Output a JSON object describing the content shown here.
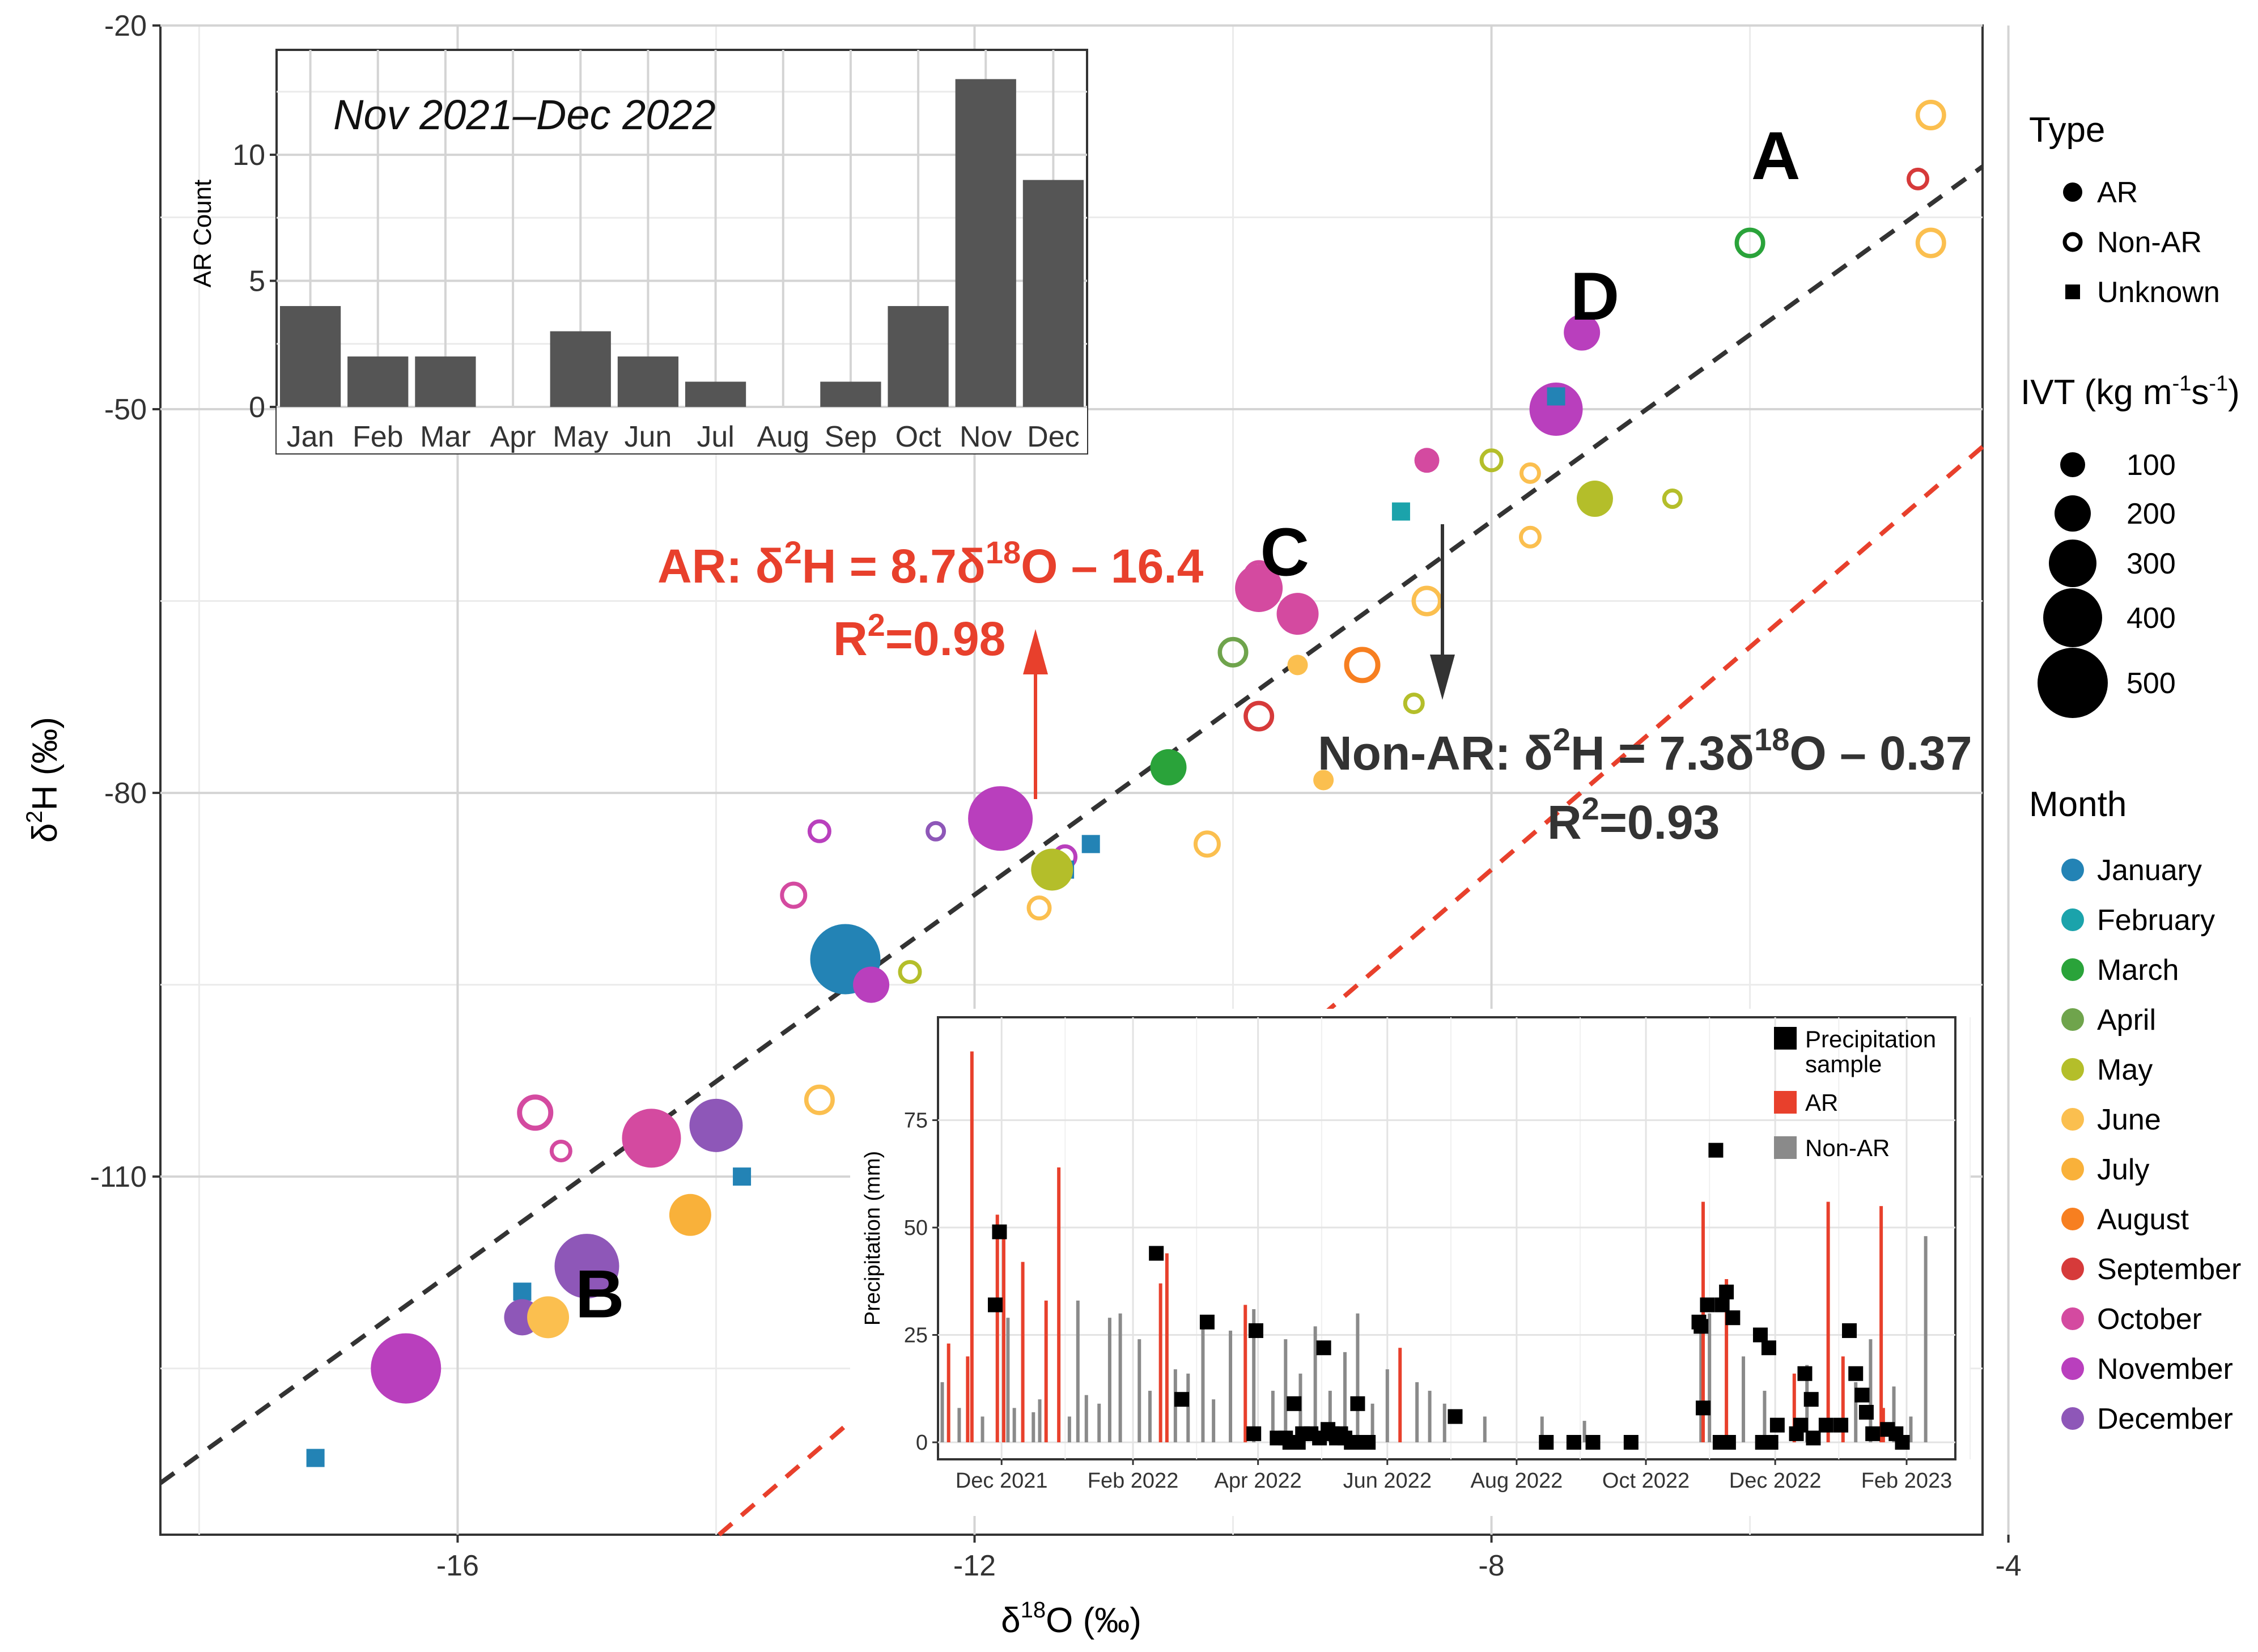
{
  "chart_data": {
    "type": "scatter",
    "xlabel_prefix": "δ",
    "xlabel_sup": "18",
    "xlabel_suffix": "O (‰)",
    "ylabel_prefix": "δ",
    "ylabel_sup": "2",
    "ylabel_suffix": "H (‰)",
    "xlim": [
      -18.3,
      -4.2
    ],
    "ylim": [
      -138,
      -20
    ],
    "xticks": [
      -16,
      -12,
      -8,
      -4
    ],
    "yticks": [
      -20,
      -50,
      -80,
      -110
    ],
    "fits": [
      {
        "name": "AR",
        "slope": 8.7,
        "intercept": -16.4,
        "color": "#e8402c",
        "eq_prefix": "AR: δ",
        "eq_sup": "2",
        "eq_mid": "H = 8.7δ",
        "eq_sup2": "18",
        "eq_suffix": "O – 16.4",
        "r2_prefix": "R",
        "r2_sup": "2",
        "r2_suffix": "=0.98"
      },
      {
        "name": "Non-AR",
        "slope": 7.3,
        "intercept": -0.37,
        "color": "#333333",
        "eq_prefix": "Non-AR: δ",
        "eq_sup": "2",
        "eq_mid": "H = 7.3δ",
        "eq_sup2": "18",
        "eq_suffix": "O – 0.37",
        "r2_prefix": "R",
        "r2_sup": "2",
        "r2_suffix": "=0.93"
      }
    ],
    "point_labels": [
      {
        "text": "A",
        "x": -5.8,
        "y": -32
      },
      {
        "text": "B",
        "x": -14.9,
        "y": -121
      },
      {
        "text": "C",
        "x": -9.6,
        "y": -63
      },
      {
        "text": "D",
        "x": -7.2,
        "y": -43
      }
    ],
    "points": [
      {
        "x": -6.0,
        "y": -37,
        "type": "Non-AR",
        "month": "March",
        "ivt": 150
      },
      {
        "x": -4.6,
        "y": -27,
        "type": "Non-AR",
        "month": "June",
        "ivt": 150
      },
      {
        "x": -4.6,
        "y": -37,
        "type": "Non-AR",
        "month": "June",
        "ivt": 150
      },
      {
        "x": -4.7,
        "y": -32,
        "type": "Non-AR",
        "month": "September",
        "ivt": 80
      },
      {
        "x": -7.3,
        "y": -44,
        "type": "AR",
        "month": "November",
        "ivt": 200
      },
      {
        "x": -7.5,
        "y": -50,
        "type": "AR",
        "month": "November",
        "ivt": 350
      },
      {
        "x": -7.5,
        "y": -49,
        "type": "Unknown",
        "month": "January"
      },
      {
        "x": -8.5,
        "y": -54,
        "type": "AR",
        "month": "October",
        "ivt": 100
      },
      {
        "x": -8.0,
        "y": -54,
        "type": "Non-AR",
        "month": "May",
        "ivt": 90
      },
      {
        "x": -7.7,
        "y": -55,
        "type": "Non-AR",
        "month": "June",
        "ivt": 70
      },
      {
        "x": -7.2,
        "y": -57,
        "type": "AR",
        "month": "May",
        "ivt": 200
      },
      {
        "x": -6.6,
        "y": -57,
        "type": "Non-AR",
        "month": "May",
        "ivt": 60
      },
      {
        "x": -8.7,
        "y": -58,
        "type": "Unknown",
        "month": "February"
      },
      {
        "x": -7.7,
        "y": -60,
        "type": "Non-AR",
        "month": "June",
        "ivt": 80
      },
      {
        "x": -9.8,
        "y": -63,
        "type": "Non-AR",
        "month": "October",
        "ivt": 150
      },
      {
        "x": -9.8,
        "y": -64,
        "type": "AR",
        "month": "October",
        "ivt": 300
      },
      {
        "x": -9.5,
        "y": -66,
        "type": "AR",
        "month": "October",
        "ivt": 250
      },
      {
        "x": -8.5,
        "y": -65,
        "type": "Non-AR",
        "month": "June",
        "ivt": 150
      },
      {
        "x": -10.0,
        "y": -69,
        "type": "Non-AR",
        "month": "April",
        "ivt": 150
      },
      {
        "x": -9.5,
        "y": -70,
        "type": "AR",
        "month": "June",
        "ivt": 60
      },
      {
        "x": -9.0,
        "y": -70,
        "type": "Non-AR",
        "month": "August",
        "ivt": 200
      },
      {
        "x": -8.6,
        "y": -73,
        "type": "Non-AR",
        "month": "May",
        "ivt": 70
      },
      {
        "x": -9.8,
        "y": -74,
        "type": "Non-AR",
        "month": "September",
        "ivt": 150
      },
      {
        "x": -10.5,
        "y": -78,
        "type": "AR",
        "month": "March",
        "ivt": 200
      },
      {
        "x": -9.3,
        "y": -79,
        "type": "AR",
        "month": "June",
        "ivt": 60
      },
      {
        "x": -11.8,
        "y": -82,
        "type": "AR",
        "month": "November",
        "ivt": 450
      },
      {
        "x": -13.2,
        "y": -83,
        "type": "Non-AR",
        "month": "November",
        "ivt": 90
      },
      {
        "x": -12.3,
        "y": -83,
        "type": "Non-AR",
        "month": "December",
        "ivt": 60
      },
      {
        "x": -10.2,
        "y": -84,
        "type": "Non-AR",
        "month": "June",
        "ivt": 120
      },
      {
        "x": -11.3,
        "y": -85,
        "type": "Non-AR",
        "month": "November",
        "ivt": 100
      },
      {
        "x": -11.1,
        "y": -84,
        "type": "Unknown",
        "month": "January"
      },
      {
        "x": -11.3,
        "y": -86,
        "type": "Unknown",
        "month": "January"
      },
      {
        "x": -11.4,
        "y": -86,
        "type": "AR",
        "month": "May",
        "ivt": 250
      },
      {
        "x": -13.4,
        "y": -88,
        "type": "Non-AR",
        "month": "October",
        "ivt": 120
      },
      {
        "x": -11.5,
        "y": -89,
        "type": "Non-AR",
        "month": "June",
        "ivt": 100
      },
      {
        "x": -13.0,
        "y": -93,
        "type": "AR",
        "month": "January",
        "ivt": 500
      },
      {
        "x": -12.8,
        "y": -95,
        "type": "AR",
        "month": "November",
        "ivt": 200
      },
      {
        "x": -12.5,
        "y": -94,
        "type": "Non-AR",
        "month": "May",
        "ivt": 90
      },
      {
        "x": -13.2,
        "y": -104,
        "type": "Non-AR",
        "month": "June",
        "ivt": 150
      },
      {
        "x": -15.4,
        "y": -105,
        "type": "Non-AR",
        "month": "October",
        "ivt": 200
      },
      {
        "x": -15.2,
        "y": -108,
        "type": "Non-AR",
        "month": "October",
        "ivt": 80
      },
      {
        "x": -14.5,
        "y": -107,
        "type": "AR",
        "month": "October",
        "ivt": 400
      },
      {
        "x": -14.0,
        "y": -106,
        "type": "AR",
        "month": "December",
        "ivt": 350
      },
      {
        "x": -13.8,
        "y": -110,
        "type": "Unknown",
        "month": "January"
      },
      {
        "x": -14.2,
        "y": -113,
        "type": "AR",
        "month": "July",
        "ivt": 250
      },
      {
        "x": -15.0,
        "y": -117,
        "type": "AR",
        "month": "December",
        "ivt": 450
      },
      {
        "x": -15.5,
        "y": -119,
        "type": "Unknown",
        "month": "January"
      },
      {
        "x": -15.5,
        "y": -121,
        "type": "AR",
        "month": "December",
        "ivt": 200
      },
      {
        "x": -15.3,
        "y": -121,
        "type": "AR",
        "month": "June",
        "ivt": 250
      },
      {
        "x": -16.4,
        "y": -125,
        "type": "AR",
        "month": "November",
        "ivt": 500
      },
      {
        "x": -17.1,
        "y": -132,
        "type": "Unknown",
        "month": "January"
      }
    ],
    "legend_type": {
      "title": "Type",
      "items": [
        {
          "label": "AR",
          "shape": "filled-circle"
        },
        {
          "label": "Non-AR",
          "shape": "open-circle"
        },
        {
          "label": "Unknown",
          "shape": "square"
        }
      ]
    },
    "legend_ivt": {
      "title_prefix": "IVT (kg m",
      "title_sup1": "-1",
      "title_mid": "s",
      "title_sup2": "-1",
      "title_suffix": ")",
      "values": [
        100,
        200,
        300,
        400,
        500
      ],
      "labels": [
        "100",
        "200",
        "300",
        "400",
        "500"
      ]
    },
    "legend_month": {
      "title": "Month",
      "items": [
        {
          "label": "January",
          "color": "#2383b5"
        },
        {
          "label": "February",
          "color": "#1ba3ab"
        },
        {
          "label": "March",
          "color": "#2aa33a"
        },
        {
          "label": "April",
          "color": "#6fa44c"
        },
        {
          "label": "May",
          "color": "#b4be2a"
        },
        {
          "label": "June",
          "color": "#fbbf4f"
        },
        {
          "label": "July",
          "color": "#f9b13a"
        },
        {
          "label": "August",
          "color": "#f77f20"
        },
        {
          "label": "September",
          "color": "#d63a3a"
        },
        {
          "label": "October",
          "color": "#d44aa0"
        },
        {
          "label": "November",
          "color": "#b93fbd"
        },
        {
          "label": "December",
          "color": "#8e57b8"
        }
      ]
    },
    "inset_bar": {
      "type": "bar",
      "title": "Nov 2021–Dec 2022",
      "ylabel": "AR Count",
      "categories": [
        "Jan",
        "Feb",
        "Mar",
        "Apr",
        "May",
        "Jun",
        "Jul",
        "Aug",
        "Sep",
        "Oct",
        "Nov",
        "Dec"
      ],
      "values": [
        4,
        2,
        2,
        0,
        3,
        2,
        1,
        0,
        1,
        4,
        13,
        9
      ],
      "yticks": [
        0,
        5,
        10
      ],
      "ylim": [
        0,
        13.8
      ],
      "color": "#555555"
    },
    "inset_precip": {
      "type": "bar",
      "ylabel": "Precipitation (mm)",
      "yticks": [
        0,
        25,
        50,
        75
      ],
      "ylim": [
        0,
        95
      ],
      "xticks": [
        "Dec 2021",
        "Feb 2022",
        "Apr 2022",
        "Jun 2022",
        "Aug 2022",
        "Oct 2022",
        "Dec 2022",
        "Feb 2023"
      ],
      "xtick_days": [
        30,
        92,
        151,
        212,
        273,
        334,
        395,
        457
      ],
      "xlim_days": [
        0,
        480
      ],
      "legend": [
        {
          "label": "Precipitation",
          "label2": "sample",
          "color": "#000000"
        },
        {
          "label": "AR",
          "color": "#e8402c"
        },
        {
          "label": "Non-AR",
          "color": "#8a8a8a"
        }
      ],
      "ar_bars": [
        [
          5,
          23
        ],
        [
          14,
          20
        ],
        [
          16,
          91
        ],
        [
          28,
          53
        ],
        [
          31,
          50
        ],
        [
          40,
          42
        ],
        [
          51,
          33
        ],
        [
          57,
          64
        ],
        [
          105,
          37
        ],
        [
          108,
          44
        ],
        [
          145,
          32
        ],
        [
          218,
          22
        ],
        [
          361,
          56
        ],
        [
          372,
          38
        ],
        [
          404,
          16
        ],
        [
          420,
          56
        ],
        [
          427,
          20
        ],
        [
          445,
          55
        ],
        [
          446,
          8
        ]
      ],
      "nonar_bars": [
        [
          2,
          14
        ],
        [
          10,
          8
        ],
        [
          21,
          6
        ],
        [
          33,
          29
        ],
        [
          36,
          8
        ],
        [
          45,
          7
        ],
        [
          48,
          10
        ],
        [
          62,
          6
        ],
        [
          66,
          33
        ],
        [
          70,
          11
        ],
        [
          76,
          9
        ],
        [
          81,
          29
        ],
        [
          86,
          30
        ],
        [
          95,
          24
        ],
        [
          100,
          12
        ],
        [
          112,
          17
        ],
        [
          118,
          16
        ],
        [
          125,
          28
        ],
        [
          130,
          10
        ],
        [
          138,
          26
        ],
        [
          149,
          31
        ],
        [
          158,
          12
        ],
        [
          164,
          24
        ],
        [
          171,
          16
        ],
        [
          178,
          27
        ],
        [
          185,
          12
        ],
        [
          192,
          21
        ],
        [
          198,
          30
        ],
        [
          205,
          9
        ],
        [
          212,
          17
        ],
        [
          226,
          14
        ],
        [
          232,
          12
        ],
        [
          239,
          9
        ],
        [
          258,
          6
        ],
        [
          285,
          6
        ],
        [
          305,
          5
        ],
        [
          360,
          26
        ],
        [
          364,
          30
        ],
        [
          380,
          20
        ],
        [
          390,
          12
        ],
        [
          410,
          18
        ],
        [
          433,
          14
        ],
        [
          440,
          24
        ],
        [
          451,
          13
        ],
        [
          459,
          6
        ],
        [
          466,
          48
        ]
      ],
      "samples": [
        [
          27,
          32
        ],
        [
          29,
          49
        ],
        [
          103,
          44
        ],
        [
          115,
          10
        ],
        [
          127,
          28
        ],
        [
          149,
          2
        ],
        [
          150,
          26
        ],
        [
          160,
          1
        ],
        [
          164,
          1
        ],
        [
          166,
          0
        ],
        [
          168,
          9
        ],
        [
          170,
          0
        ],
        [
          172,
          2
        ],
        [
          176,
          2
        ],
        [
          180,
          1
        ],
        [
          182,
          22
        ],
        [
          184,
          3
        ],
        [
          186,
          2
        ],
        [
          188,
          1
        ],
        [
          190,
          2
        ],
        [
          192,
          1
        ],
        [
          195,
          0
        ],
        [
          198,
          9
        ],
        [
          200,
          0
        ],
        [
          203,
          0
        ],
        [
          244,
          6
        ],
        [
          287,
          0
        ],
        [
          300,
          0
        ],
        [
          309,
          0
        ],
        [
          327,
          0
        ],
        [
          359,
          28
        ],
        [
          360,
          27
        ],
        [
          361,
          8
        ],
        [
          363,
          32
        ],
        [
          367,
          68
        ],
        [
          369,
          0
        ],
        [
          370,
          32
        ],
        [
          372,
          35
        ],
        [
          373,
          0
        ],
        [
          375,
          29
        ],
        [
          388,
          25
        ],
        [
          389,
          0
        ],
        [
          392,
          22
        ],
        [
          393,
          0
        ],
        [
          396,
          4
        ],
        [
          405,
          2
        ],
        [
          407,
          4
        ],
        [
          409,
          16
        ],
        [
          412,
          10
        ],
        [
          413,
          1
        ],
        [
          419,
          4
        ],
        [
          426,
          4
        ],
        [
          430,
          26
        ],
        [
          433,
          16
        ],
        [
          436,
          11
        ],
        [
          438,
          7
        ],
        [
          441,
          2
        ],
        [
          448,
          3
        ],
        [
          452,
          2
        ],
        [
          455,
          0
        ]
      ]
    }
  }
}
